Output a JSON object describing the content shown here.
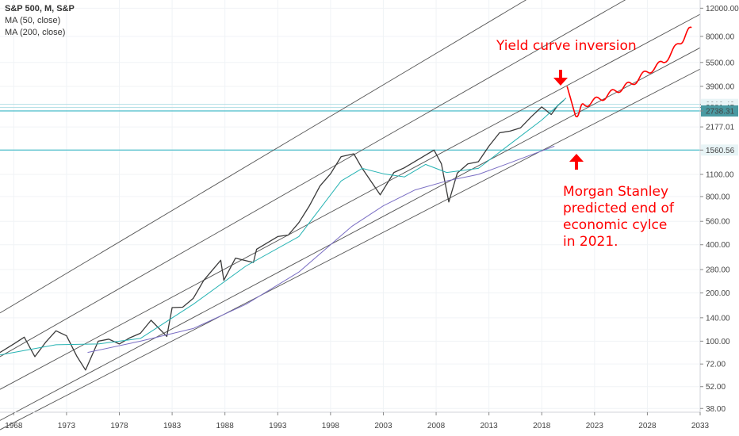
{
  "legend": {
    "title": "S&P 500, M, S&P",
    "ma1": "MA (50, close)",
    "ma2": "MA (200, close)"
  },
  "annotations": {
    "inversion": "Yield curve inversion",
    "forecast": "Morgan Stanley\npredicted end of\neconomic cylce\nin 2021."
  },
  "colors": {
    "price": "#3a3a3a",
    "ma50": "#26b3b3",
    "ma200": "#7b6fc4",
    "channel": "#555555",
    "hline": "#5cc3cf",
    "annotation": "#ff0000",
    "label_bg": "#e8f4f6",
    "label_dark_bg": "#4a9aa2"
  },
  "chart_data": {
    "type": "line",
    "scale": "log",
    "y_ticks": [
      "12000.00",
      "8000.00",
      "5500.00",
      "3900.00",
      "3010.48",
      "2881.45",
      "2738.31",
      "2177.01",
      "1560.56",
      "1100.00",
      "800.00",
      "560.00",
      "400.00",
      "280.00",
      "200.00",
      "140.00",
      "100.00",
      "72.00",
      "52.00",
      "38.00"
    ],
    "y_tick_values": [
      12000,
      8000,
      5500,
      3900,
      3010.48,
      2881.45,
      2738.31,
      2177.01,
      1560.56,
      1100,
      800,
      560,
      400,
      280,
      200,
      140,
      100,
      72,
      52,
      38
    ],
    "highlighted_labels": [
      2738.31
    ],
    "x_ticks": [
      "1968",
      "1973",
      "1978",
      "1983",
      "1988",
      "1993",
      "1998",
      "2003",
      "2008",
      "2013",
      "2018",
      "2023",
      "2028",
      "2033"
    ],
    "x_tick_values": [
      1968,
      1973,
      1978,
      1983,
      1988,
      1993,
      1998,
      2003,
      2008,
      2013,
      2018,
      2023,
      2028,
      2033
    ],
    "xlim": [
      1966.7,
      2033
    ],
    "ylim": [
      36,
      13500
    ],
    "horizontal_levels": [
      3010.48,
      2881.45,
      2738.31,
      1560.56
    ],
    "series": [
      {
        "name": "S&P 500",
        "x": [
          1966.7,
          1968,
          1969,
          1970,
          1971,
          1972,
          1973,
          1974,
          1974.8,
          1976,
          1977,
          1978,
          1979,
          1980,
          1981,
          1982.5,
          1983,
          1984,
          1985,
          1986,
          1987.6,
          1987.9,
          1989,
          1990.7,
          1991,
          1993,
          1994,
          1995,
          1996,
          1997,
          1998,
          1999,
          2000.2,
          2001,
          2002.7,
          2004,
          2005,
          2007.8,
          2008.5,
          2009.2,
          2010,
          2011,
          2012,
          2013,
          2014,
          2015,
          2016,
          2017,
          2018,
          2018.9,
          2019.5,
          2020.1
        ],
        "y": [
          85,
          96,
          106,
          80,
          98,
          116,
          108,
          80,
          66,
          100,
          103,
          96,
          105,
          112,
          135,
          107,
          162,
          163,
          185,
          240,
          320,
          240,
          330,
          310,
          375,
          450,
          460,
          550,
          700,
          930,
          1110,
          1420,
          1480,
          1200,
          820,
          1130,
          1210,
          1560,
          1280,
          740,
          1120,
          1280,
          1320,
          1650,
          2000,
          2050,
          2150,
          2520,
          2900,
          2600,
          2950,
          3200
        ]
      },
      {
        "name": "MA (50, close)",
        "x": [
          1966.7,
          1972,
          1976,
          1980,
          1985,
          1990,
          1995,
          1999,
          2001,
          2003,
          2005,
          2007,
          2009,
          2012,
          2015,
          2018,
          2020.3
        ],
        "y": [
          82,
          95,
          96,
          104,
          170,
          295,
          450,
          1000,
          1200,
          1110,
          1060,
          1270,
          1130,
          1200,
          1700,
          2400,
          3300
        ]
      },
      {
        "name": "MA (200, close)",
        "x": [
          1975,
          1980,
          1985,
          1990,
          1995,
          2000,
          2003,
          2006,
          2009,
          2012,
          2015,
          2019.2
        ],
        "y": [
          85,
          100,
          120,
          170,
          270,
          520,
          700,
          880,
          1000,
          1100,
          1300,
          1650
        ]
      },
      {
        "name": "Projection",
        "x": [
          2020.4,
          2021.2,
          2022,
          2023.5,
          2025,
          2026.5,
          2028,
          2029.5,
          2031,
          2032.2
        ],
        "y": [
          3900,
          2550,
          3000,
          3250,
          3650,
          4050,
          4800,
          5500,
          7200,
          9100
        ]
      }
    ],
    "channels": [
      {
        "x": [
          1966.7,
          2033
        ],
        "y": [
          150,
          60000
        ]
      },
      {
        "x": [
          1966.7,
          2033
        ],
        "y": [
          80,
          25000
        ]
      },
      {
        "x": [
          1966.7,
          2033
        ],
        "y": [
          50,
          11000
        ]
      },
      {
        "x": [
          1966.7,
          2033
        ],
        "y": [
          32,
          6800
        ]
      },
      {
        "x": [
          1966.7,
          2033
        ],
        "y": [
          28,
          5000
        ]
      }
    ]
  }
}
